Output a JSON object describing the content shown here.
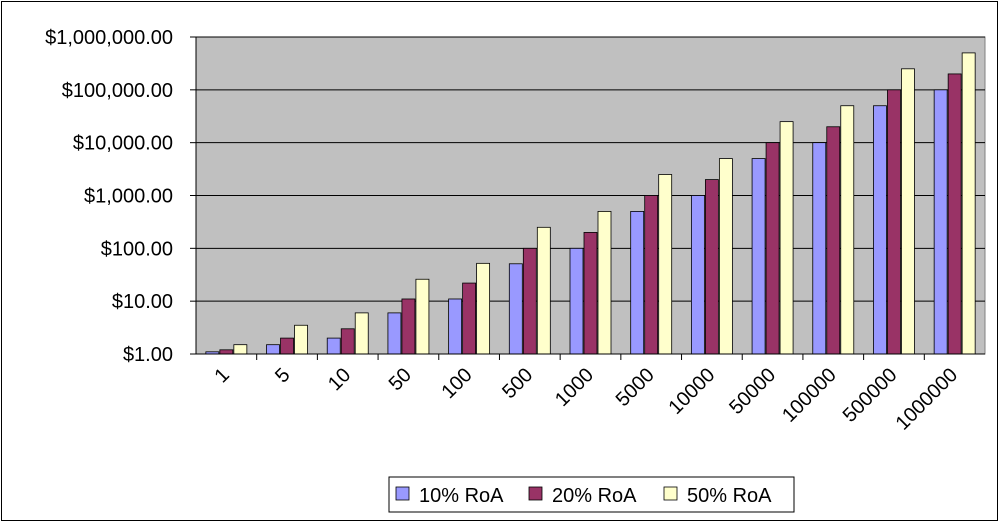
{
  "chart_data": {
    "type": "bar",
    "y_scale": "log",
    "ylim": [
      1,
      1000000
    ],
    "y_ticks": [
      "$1.00",
      "$10.00",
      "$100.00",
      "$1,000.00",
      "$10,000.00",
      "$100,000.00",
      "$1,000,000.00"
    ],
    "categories": [
      "1",
      "5",
      "10",
      "50",
      "100",
      "500",
      "1000",
      "5000",
      "10000",
      "50000",
      "100000",
      "500000",
      "1000000"
    ],
    "series": [
      {
        "name": "10% RoA",
        "color": "#9999FF",
        "values": [
          1.1,
          1.5,
          2,
          6,
          11,
          51,
          100,
          500,
          1000,
          5000,
          10000,
          50000,
          100000
        ]
      },
      {
        "name": "20% RoA",
        "color": "#993366",
        "values": [
          1.2,
          2,
          3,
          11,
          22,
          100,
          200,
          1000,
          2000,
          10000,
          20000,
          100000,
          200000
        ]
      },
      {
        "name": "50% RoA",
        "color": "#FFFFCC",
        "values": [
          1.5,
          3.5,
          6,
          26,
          52,
          250,
          500,
          2500,
          5000,
          25000,
          50000,
          250000,
          500000
        ]
      }
    ],
    "plot_background": "#C0C0C0",
    "grid": true,
    "legend_position": "bottom"
  }
}
